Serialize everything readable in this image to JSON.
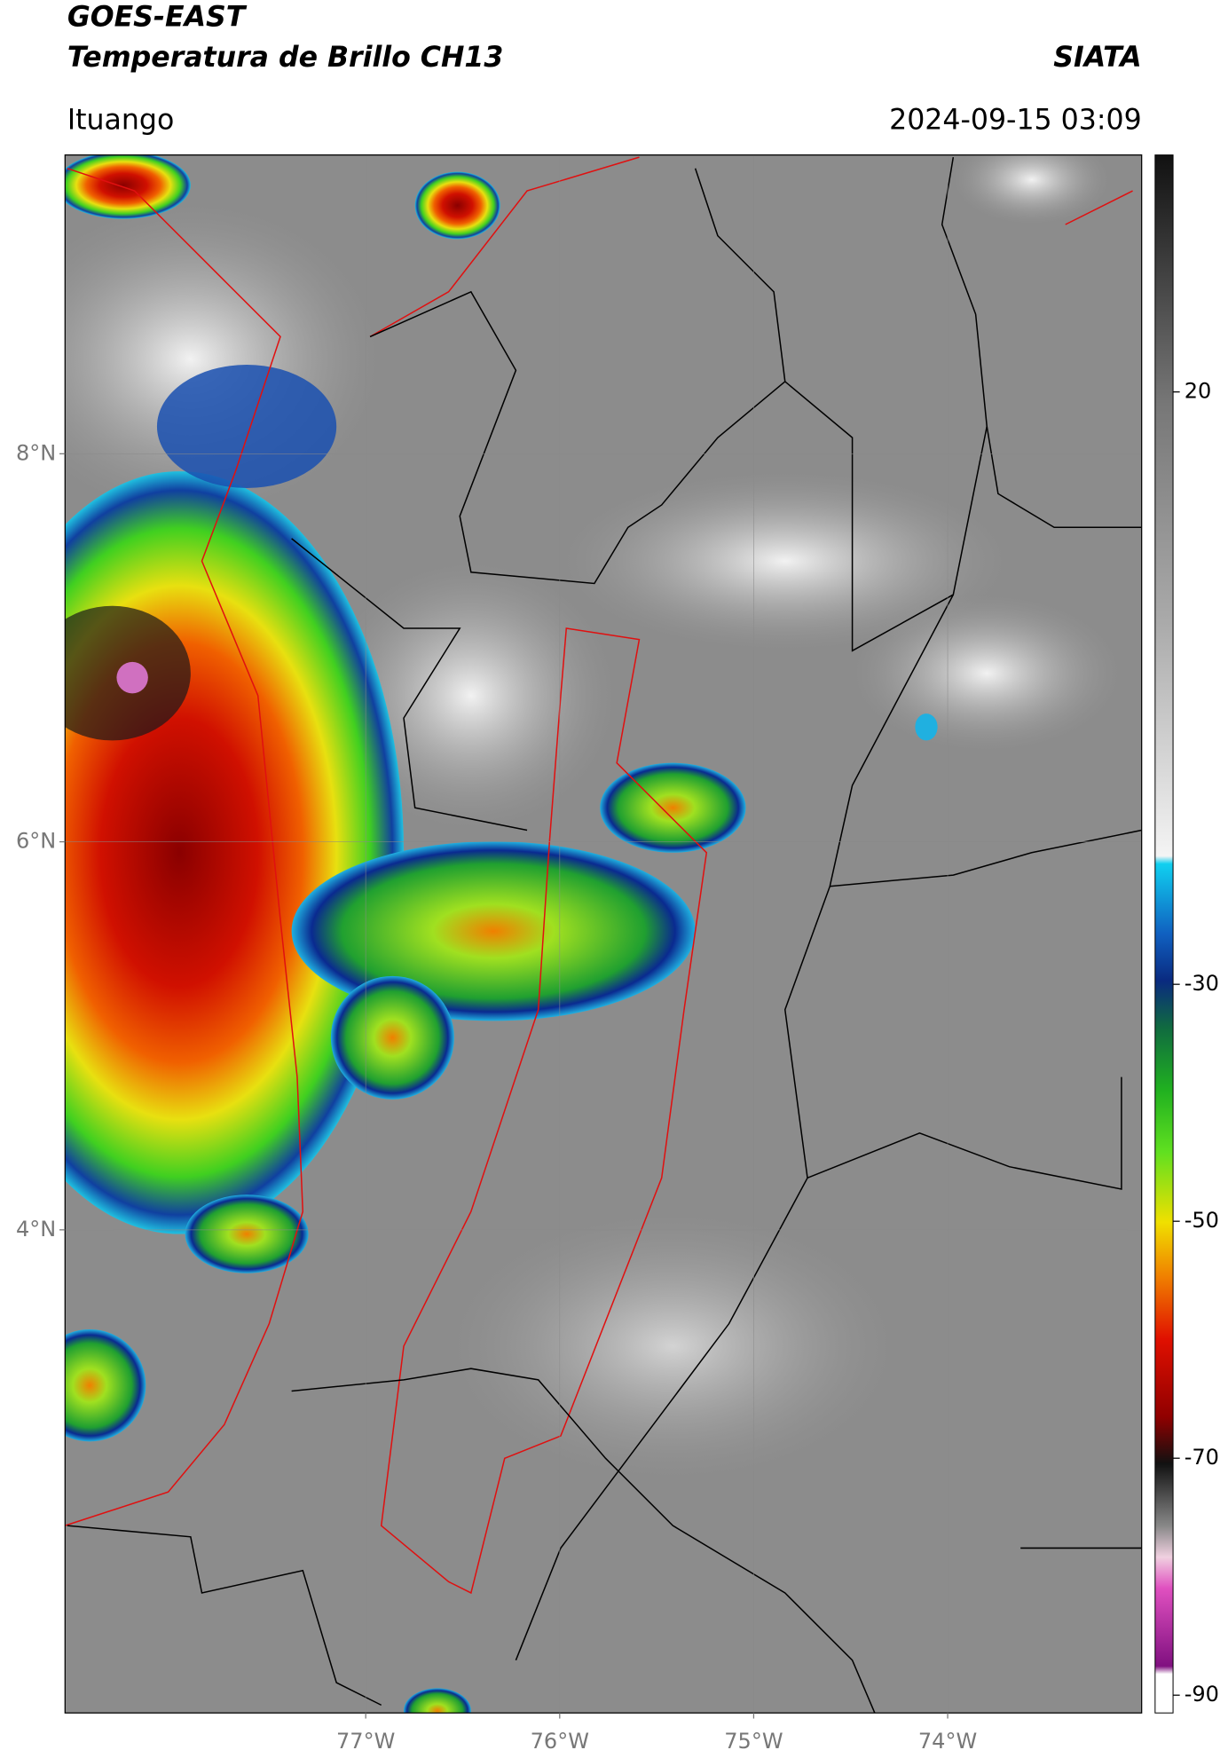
{
  "header": {
    "title": "GOES-EAST",
    "subtitle": "Temperatura de Brillo CH13",
    "organization": "SIATA",
    "location": "Ituango",
    "datetime": "2024-09-15 03:09"
  },
  "map": {
    "xlim": [
      -78.55,
      -73.0
    ],
    "ylim": [
      1.51,
      9.54
    ],
    "lat_ticks": [
      {
        "value": 8,
        "label": "8°N"
      },
      {
        "value": 6,
        "label": "6°N"
      },
      {
        "value": 4,
        "label": "4°N"
      }
    ],
    "lon_ticks": [
      {
        "value": -77,
        "label": "77°W"
      },
      {
        "value": -76,
        "label": "76°W"
      },
      {
        "value": -75,
        "label": "75°W"
      },
      {
        "value": -74,
        "label": "74°W"
      }
    ],
    "grid": true
  },
  "colorbar": {
    "lim": [
      -91.5,
      40
    ],
    "ticks": [
      20,
      -30,
      -50,
      -70,
      -90
    ]
  }
}
